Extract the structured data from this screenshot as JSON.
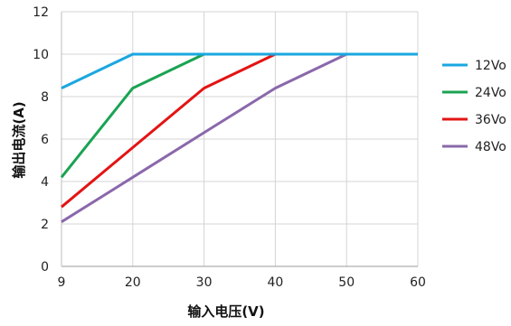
{
  "chart_data": {
    "type": "line",
    "xlabel": "输入电压(V)",
    "ylabel": "输出电流(A)",
    "xlim": [
      9,
      60
    ],
    "ylim": [
      0,
      12
    ],
    "x_ticks": [
      "9",
      "20",
      "30",
      "40",
      "50",
      "60"
    ],
    "y_ticks": [
      "0",
      "2",
      "4",
      "6",
      "8",
      "10",
      "12"
    ],
    "grid": true,
    "legend_position": "right",
    "series": [
      {
        "name": "12Vo",
        "color": "#1aa7e0",
        "points": [
          [
            9,
            8.4
          ],
          [
            20,
            10
          ],
          [
            60,
            10
          ]
        ]
      },
      {
        "name": "24Vo",
        "color": "#1aa352",
        "points": [
          [
            9,
            4.2
          ],
          [
            20,
            8.4
          ],
          [
            30,
            10
          ],
          [
            60,
            10
          ]
        ]
      },
      {
        "name": "36Vo",
        "color": "#e31414",
        "points": [
          [
            9,
            2.8
          ],
          [
            20,
            5.6
          ],
          [
            30,
            8.4
          ],
          [
            40,
            10
          ],
          [
            60,
            10
          ]
        ]
      },
      {
        "name": "48Vo",
        "color": "#8a68ab",
        "points": [
          [
            9,
            2.1
          ],
          [
            20,
            4.2
          ],
          [
            30,
            6.3
          ],
          [
            40,
            8.4
          ],
          [
            50,
            10
          ],
          [
            60,
            10
          ]
        ]
      }
    ]
  }
}
